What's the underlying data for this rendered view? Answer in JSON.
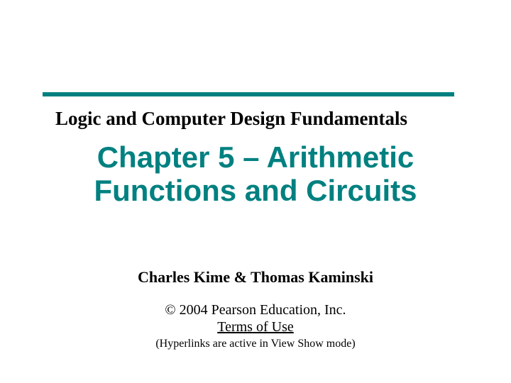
{
  "style": {
    "rule_color": "#008080",
    "title_color": "#008080",
    "background": "#ffffff"
  },
  "subtitle": "Logic and Computer Design Fundamentals",
  "title_line1": "Chapter 5 – Arithmetic",
  "title_line2": "Functions and Circuits",
  "authors": "Charles Kime & Thomas Kaminski",
  "copyright": "© 2004 Pearson Education, Inc.",
  "terms": "Terms of Use",
  "note": "(Hyperlinks are active in View Show mode)"
}
